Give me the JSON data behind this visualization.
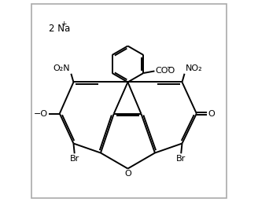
{
  "bg": "#ffffff",
  "border_color": "#888888",
  "lw": 1.4,
  "lw_thin": 1.4,
  "na_text": "2 Na",
  "na_charge": "+",
  "coo_text": "COO",
  "coo_charge": "−",
  "no2_left": "O₂N",
  "no2_right": "NO₂",
  "o_minus": "−O",
  "o_label": "O",
  "br": "Br",
  "fontsize": 8.0
}
